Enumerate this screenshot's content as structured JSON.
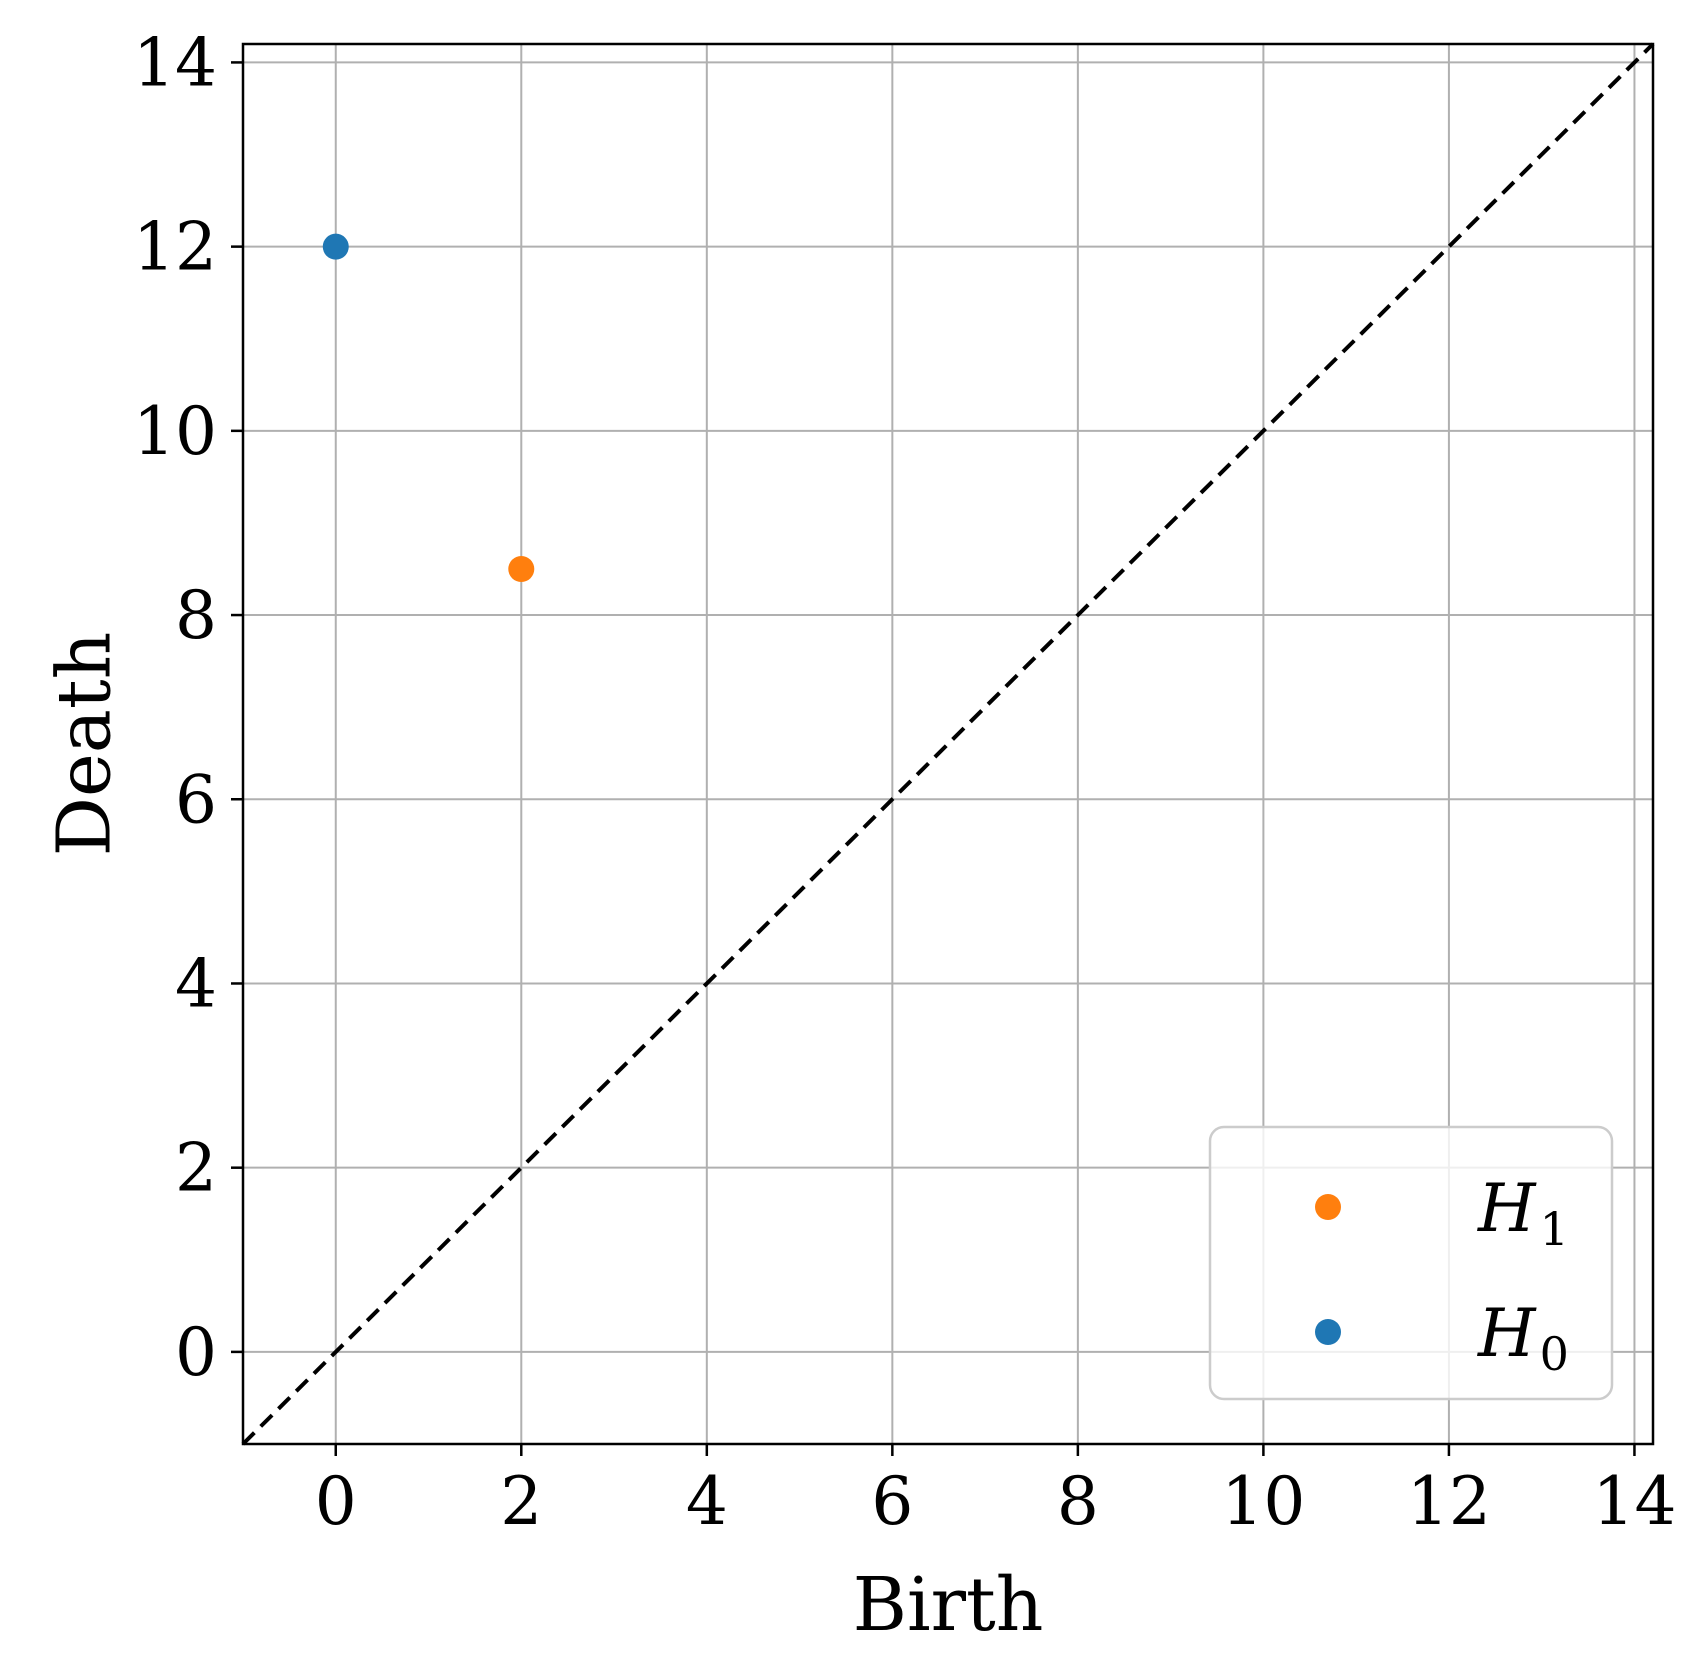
{
  "chart_data": {
    "type": "scatter",
    "title": "",
    "xlabel": "Birth",
    "ylabel": "Death",
    "xlim": [
      -1.0,
      14.2
    ],
    "ylim": [
      -1.0,
      14.2
    ],
    "xticks": [
      "0",
      "2",
      "4",
      "6",
      "8",
      "10",
      "12",
      "14"
    ],
    "yticks": [
      "0",
      "2",
      "4",
      "6",
      "8",
      "10",
      "12",
      "14"
    ],
    "grid": true,
    "diagonal": {
      "style": "dashed",
      "color": "#000000"
    },
    "legend_position": "bottom-right",
    "series": [
      {
        "name": "H",
        "subscript": "1",
        "color": "#ff7f0e",
        "points": [
          {
            "x": 2,
            "y": 8.5
          }
        ]
      },
      {
        "name": "H",
        "subscript": "0",
        "color": "#1f77b4",
        "points": [
          {
            "x": 0,
            "y": 12
          }
        ]
      }
    ]
  }
}
